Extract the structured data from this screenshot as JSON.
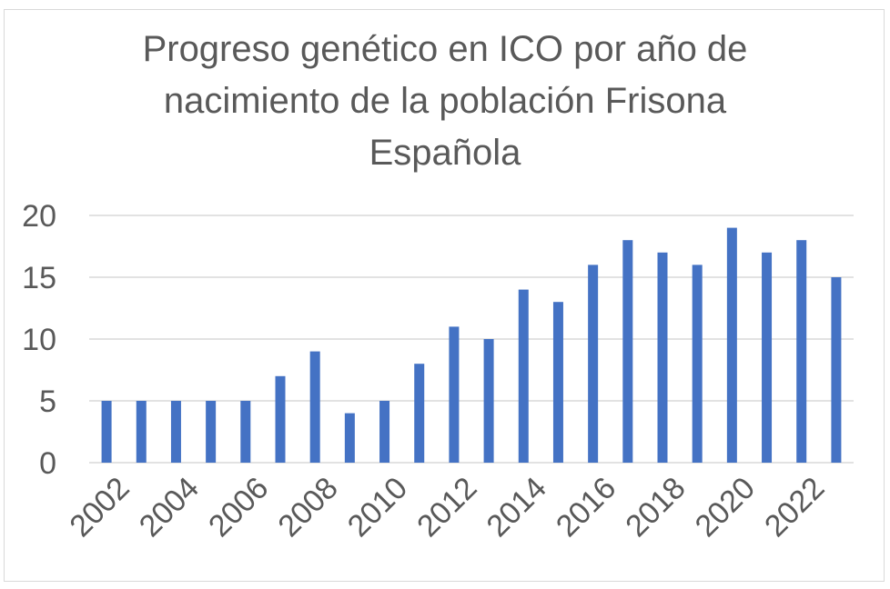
{
  "chart_data": {
    "type": "bar",
    "title_lines": [
      "Progreso genético en ICO por año de",
      "nacimiento de la población Frisona",
      "Española"
    ],
    "categories": [
      "2002",
      "2003",
      "2004",
      "2005",
      "2006",
      "2007",
      "2008",
      "2009",
      "2010",
      "2011",
      "2012",
      "2013",
      "2014",
      "2015",
      "2016",
      "2017",
      "2018",
      "2019",
      "2020",
      "2021",
      "2022",
      "2023"
    ],
    "x_tick_labels": [
      "2002",
      "",
      "2004",
      "",
      "2006",
      "",
      "2008",
      "",
      "2010",
      "",
      "2012",
      "",
      "2014",
      "",
      "2016",
      "",
      "2018",
      "",
      "2020",
      "",
      "2022",
      ""
    ],
    "values": [
      5,
      5,
      5,
      5,
      5,
      7,
      9,
      4,
      5,
      8,
      11,
      10,
      14,
      13,
      16,
      18,
      17,
      16,
      19,
      17,
      18,
      15
    ],
    "xlabel": "",
    "ylabel": "",
    "ylim": [
      0,
      20
    ],
    "yticks": [
      "0",
      "5",
      "10",
      "15",
      "20"
    ],
    "grid": true,
    "legend": "none",
    "bar_color": "#4472c4",
    "grid_color": "#d9d9d9"
  }
}
